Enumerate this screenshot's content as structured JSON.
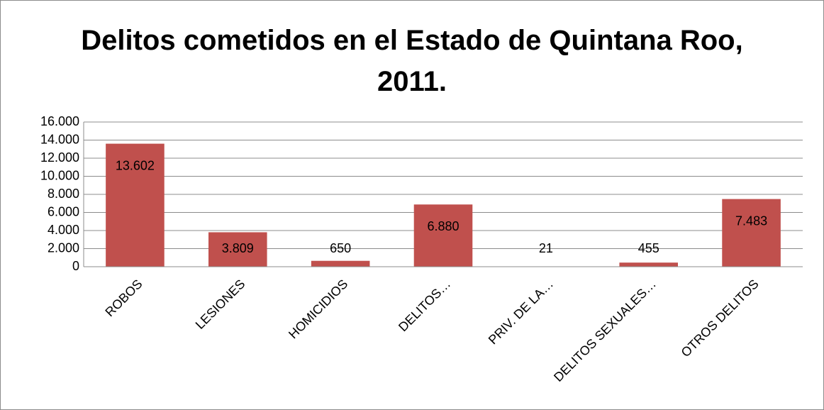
{
  "chart_data": {
    "type": "bar",
    "title": "Delitos cometidos en el Estado de Quintana Roo, 2011.",
    "categories": [
      "ROBOS",
      "LESIONES",
      "HOMICIDIOS",
      "DELITOS…",
      "PRIV. DE LA…",
      "DELITOS SEXUALES…",
      "OTROS DELITOS"
    ],
    "values": [
      13602,
      3809,
      650,
      6880,
      21,
      455,
      7483
    ],
    "value_labels": [
      "13.602",
      "3.809",
      "650",
      "6.880",
      "21",
      "455",
      "7.483"
    ],
    "color": "#c0504d",
    "ylim": [
      0,
      16000
    ],
    "yticks": [
      0,
      {
        "value": 2000,
        "label": "2.000"
      },
      {
        "value": 4000,
        "label": "4.000"
      },
      {
        "value": 6000,
        "label": "6.000"
      },
      {
        "value": 8000,
        "label": "8.000"
      },
      {
        "value": 10000,
        "label": "10.000"
      },
      {
        "value": 12000,
        "label": "12.000"
      },
      {
        "value": 14000,
        "label": "14.000"
      },
      {
        "value": 16000,
        "label": "16.000"
      }
    ],
    "grid": true
  }
}
